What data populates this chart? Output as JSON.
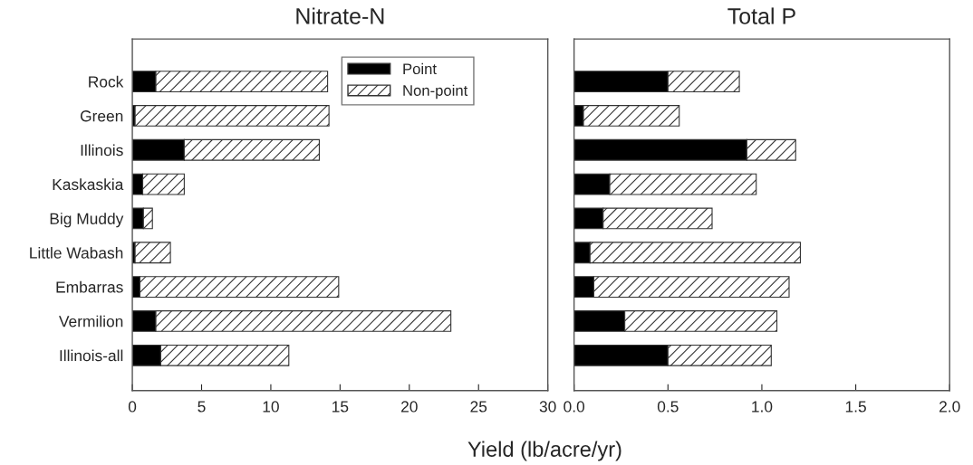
{
  "chart_data": [
    {
      "type": "bar",
      "title": "Nitrate-N",
      "xlabel": "Yield (lb/acre/yr)",
      "orientation": "horizontal",
      "stacked": true,
      "categories": [
        "Rock",
        "Green",
        "Illinois",
        "Kaskaskia",
        "Big Muddy",
        "Little Wabash",
        "Embarras",
        "Vermilion",
        "Illinois-all"
      ],
      "series": [
        {
          "name": "Point",
          "color": "#000000",
          "values": [
            1.7,
            0.2,
            3.75,
            0.75,
            0.8,
            0.2,
            0.55,
            1.7,
            2.05
          ]
        },
        {
          "name": "Non-point",
          "color": "#ffffff",
          "values": [
            12.4,
            14.0,
            9.75,
            3.0,
            0.65,
            2.55,
            14.35,
            21.3,
            9.25
          ]
        }
      ],
      "xlim": [
        0,
        30
      ],
      "xticks": [
        0,
        5,
        10,
        15,
        20,
        25,
        30
      ],
      "legend": "top right",
      "grid": false
    },
    {
      "type": "bar",
      "title": "Total P",
      "orientation": "horizontal",
      "stacked": true,
      "categories": [
        null,
        null,
        null,
        null,
        null,
        null,
        null,
        null,
        null
      ],
      "series": [
        {
          "color": "#000000",
          "values": [
            0.5,
            0.05,
            0.92,
            0.19,
            0.155,
            0.085,
            0.105,
            0.27,
            0.5
          ]
        },
        {
          "color": "#ffffff",
          "values": [
            0.38,
            0.51,
            0.26,
            0.78,
            0.58,
            1.12,
            1.04,
            0.81,
            0.55
          ]
        }
      ],
      "xlim": [
        0.0,
        2.0
      ],
      "xticks": [
        {
          "value": 0.0,
          "label": "0.0"
        },
        {
          "value": 0.5,
          "label": "0.5"
        },
        {
          "value": 1.0,
          "label": "1.0"
        },
        {
          "value": 1.5,
          "label": "1.5"
        },
        {
          "value": 2.0,
          "label": "2.0"
        }
      ],
      "tick_labels": "x",
      "grid": false
    }
  ]
}
